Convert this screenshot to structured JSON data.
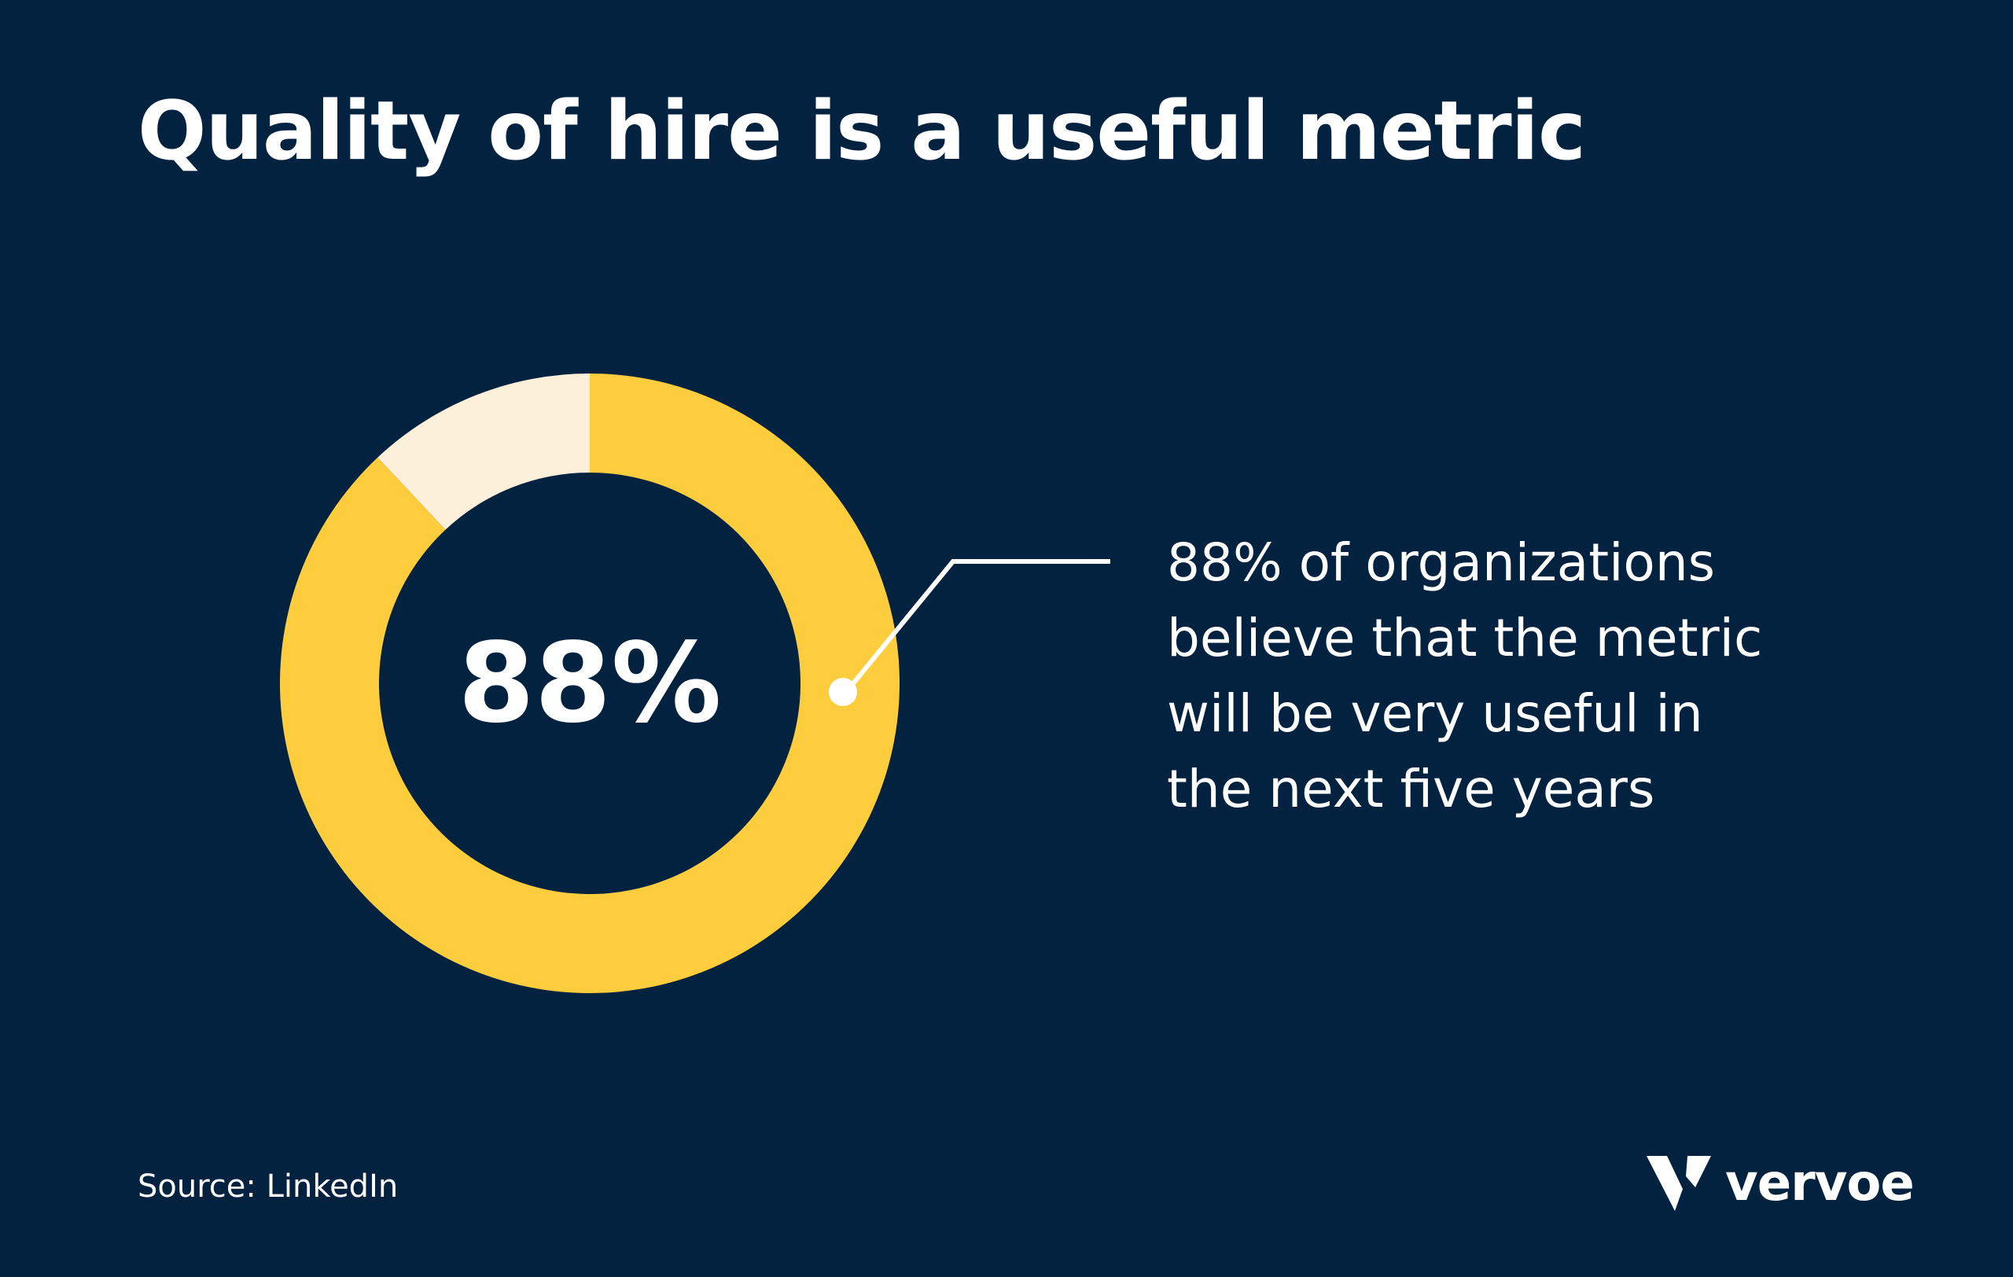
{
  "title": "Quality of hire is a useful metric",
  "chart_data": {
    "type": "pie",
    "style": "donut",
    "slices": [
      {
        "value": 88,
        "color": "#fecd3d"
      },
      {
        "value": 12,
        "color": "#fdf0da"
      }
    ],
    "center_label": "88%",
    "annotation": [
      "88% of organizations",
      "believe that the metric",
      "will be very useful in",
      "the next five years"
    ]
  },
  "source": "Source: LinkedIn",
  "logo": {
    "text": "vervoe",
    "icon": "vervoe-v-logo-icon"
  },
  "colors": {
    "background": "#03223f",
    "primary": "#fecd3d",
    "remainder": "#fdf0da",
    "text": "#ffffff"
  }
}
